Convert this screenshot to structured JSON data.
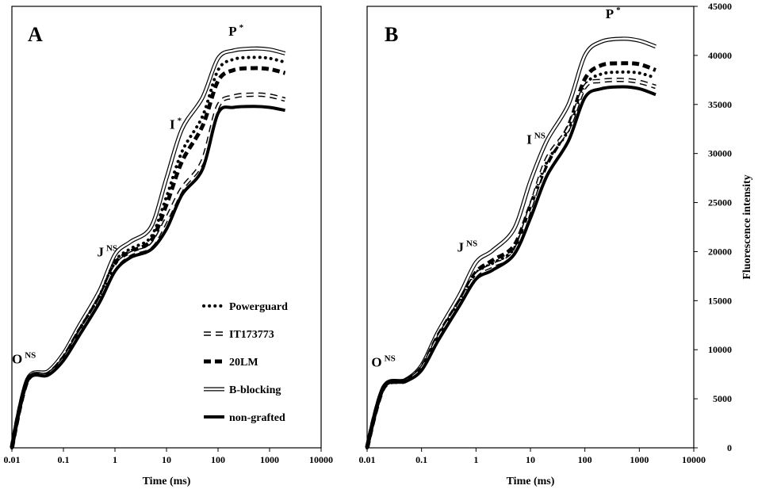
{
  "chart_data": [
    {
      "type": "line",
      "panel_label": "A",
      "xlabel": "Time (ms)",
      "ylabel": "",
      "xscale": "log",
      "xlim": [
        0.01,
        10000
      ],
      "ylim": [
        0,
        45000
      ],
      "x_ticks": [
        "0.01",
        "0.1",
        "1",
        "10",
        "100",
        "1000",
        "10000"
      ],
      "y_ticks": [],
      "legend": "bottom-right",
      "grid": false,
      "series": [
        {
          "name": "Powerguard",
          "style": "dotted",
          "x": [
            0.01,
            0.02,
            0.05,
            0.1,
            0.2,
            0.5,
            1,
            2,
            5,
            10,
            20,
            50,
            100,
            200,
            500,
            1000,
            2000
          ],
          "y": [
            0,
            6900,
            7600,
            9300,
            12000,
            15500,
            19000,
            20300,
            21500,
            25600,
            30200,
            33800,
            38500,
            39600,
            39800,
            39700,
            39300
          ]
        },
        {
          "name": "IT173773",
          "style": "dashed-hollow",
          "x": [
            0.01,
            0.02,
            0.05,
            0.1,
            0.2,
            0.5,
            1,
            2,
            5,
            10,
            20,
            50,
            100,
            200,
            500,
            1000,
            2000
          ],
          "y": [
            0,
            6850,
            7500,
            9050,
            11600,
            15000,
            18400,
            19800,
            20600,
            23300,
            26400,
            29200,
            34800,
            35800,
            36000,
            35900,
            35500
          ]
        },
        {
          "name": "20LM",
          "style": "dashed-thick",
          "x": [
            0.01,
            0.02,
            0.05,
            0.1,
            0.2,
            0.5,
            1,
            2,
            5,
            10,
            20,
            50,
            100,
            200,
            500,
            1000,
            2000
          ],
          "y": [
            0,
            6900,
            7550,
            9200,
            11900,
            15300,
            18800,
            20000,
            21100,
            24800,
            29200,
            32800,
            37400,
            38500,
            38700,
            38600,
            38200
          ]
        },
        {
          "name": "B-blocking",
          "style": "double",
          "x": [
            0.01,
            0.02,
            0.05,
            0.1,
            0.2,
            0.5,
            1,
            2,
            5,
            10,
            20,
            50,
            100,
            200,
            500,
            1000,
            2000
          ],
          "y": [
            0,
            7000,
            7800,
            9600,
            12400,
            16000,
            19700,
            21000,
            22500,
            27500,
            32500,
            35700,
            39700,
            40500,
            40700,
            40600,
            40200
          ]
        },
        {
          "name": "non-grafted",
          "style": "solid-thick",
          "x": [
            0.01,
            0.02,
            0.05,
            0.1,
            0.2,
            0.5,
            1,
            2,
            5,
            10,
            20,
            50,
            100,
            200,
            500,
            1000,
            2000
          ],
          "y": [
            0,
            6800,
            7400,
            8900,
            11400,
            14800,
            18000,
            19400,
            20200,
            22300,
            25800,
            28400,
            34100,
            34700,
            34800,
            34700,
            34400
          ]
        }
      ],
      "annotations": [
        {
          "text": "O",
          "sup": "NS",
          "x": 0.01,
          "y": 8600
        },
        {
          "text": "J",
          "sup": "NS",
          "x": 0.45,
          "y": 19500
        },
        {
          "text": "I",
          "sup": "*",
          "x": 11.5,
          "y": 32500
        },
        {
          "text": "P",
          "sup": "*",
          "x": 160,
          "y": 42000
        }
      ]
    },
    {
      "type": "line",
      "panel_label": "B",
      "xlabel": "Time (ms)",
      "ylabel": "Fluorescence intensity",
      "xscale": "log",
      "xlim": [
        0.01,
        10000
      ],
      "ylim": [
        0,
        45000
      ],
      "x_ticks": [
        "0.01",
        "0.1",
        "1",
        "10",
        "100",
        "1000",
        "10000"
      ],
      "y_ticks": [
        "0",
        "5000",
        "10000",
        "15000",
        "20000",
        "25000",
        "30000",
        "35000",
        "40000",
        "45000"
      ],
      "grid": false,
      "series": [
        {
          "name": "Powerguard",
          "style": "dotted",
          "x": [
            0.01,
            0.02,
            0.05,
            0.1,
            0.2,
            0.5,
            1,
            2,
            5,
            10,
            20,
            50,
            100,
            200,
            500,
            1000,
            2000
          ],
          "y": [
            0,
            6100,
            6800,
            8100,
            11300,
            14900,
            17800,
            18800,
            20300,
            24600,
            29100,
            32400,
            36900,
            38100,
            38300,
            38200,
            37700
          ]
        },
        {
          "name": "IT173773",
          "style": "dashed-hollow",
          "x": [
            0.01,
            0.02,
            0.05,
            0.1,
            0.2,
            0.5,
            1,
            2,
            5,
            10,
            20,
            50,
            100,
            200,
            500,
            1000,
            2000
          ],
          "y": [
            0,
            6100,
            6800,
            8100,
            11200,
            14700,
            17600,
            18600,
            19900,
            24500,
            29400,
            32600,
            36800,
            37400,
            37500,
            37300,
            36800
          ]
        },
        {
          "name": "20LM",
          "style": "dashed-thick",
          "x": [
            0.01,
            0.02,
            0.05,
            0.1,
            0.2,
            0.5,
            1,
            2,
            5,
            10,
            20,
            50,
            100,
            200,
            500,
            1000,
            2000
          ],
          "y": [
            0,
            6150,
            6850,
            8200,
            11400,
            15000,
            17900,
            19100,
            20600,
            24700,
            28900,
            32800,
            37600,
            39000,
            39200,
            39100,
            38500
          ]
        },
        {
          "name": "B-blocking",
          "style": "double",
          "x": [
            0.01,
            0.02,
            0.05,
            0.1,
            0.2,
            0.5,
            1,
            2,
            5,
            10,
            20,
            50,
            100,
            200,
            500,
            1000,
            2000
          ],
          "y": [
            0,
            6200,
            6900,
            8400,
            11800,
            15600,
            18900,
            20100,
            22300,
            27200,
            31300,
            35000,
            40000,
            41400,
            41700,
            41500,
            40900
          ]
        },
        {
          "name": "non-grafted",
          "style": "solid-thick",
          "x": [
            0.01,
            0.02,
            0.05,
            0.1,
            0.2,
            0.5,
            1,
            2,
            5,
            10,
            20,
            50,
            100,
            200,
            500,
            1000,
            2000
          ],
          "y": [
            0,
            6100,
            6750,
            7900,
            10900,
            14500,
            17200,
            18100,
            19700,
            23400,
            27700,
            31300,
            35700,
            36600,
            36800,
            36600,
            36000
          ]
        }
      ],
      "annotations": [
        {
          "text": "O",
          "sup": "NS",
          "x": 0.012,
          "y": 8300
        },
        {
          "text": "J",
          "sup": "NS",
          "x": 0.45,
          "y": 20000
        },
        {
          "text": "I",
          "sup": "NS",
          "x": 8.5,
          "y": 31000
        },
        {
          "text": "P",
          "sup": "*",
          "x": 240,
          "y": 43800
        }
      ]
    }
  ],
  "colors": {
    "ink": "#000000",
    "background": "#ffffff"
  }
}
